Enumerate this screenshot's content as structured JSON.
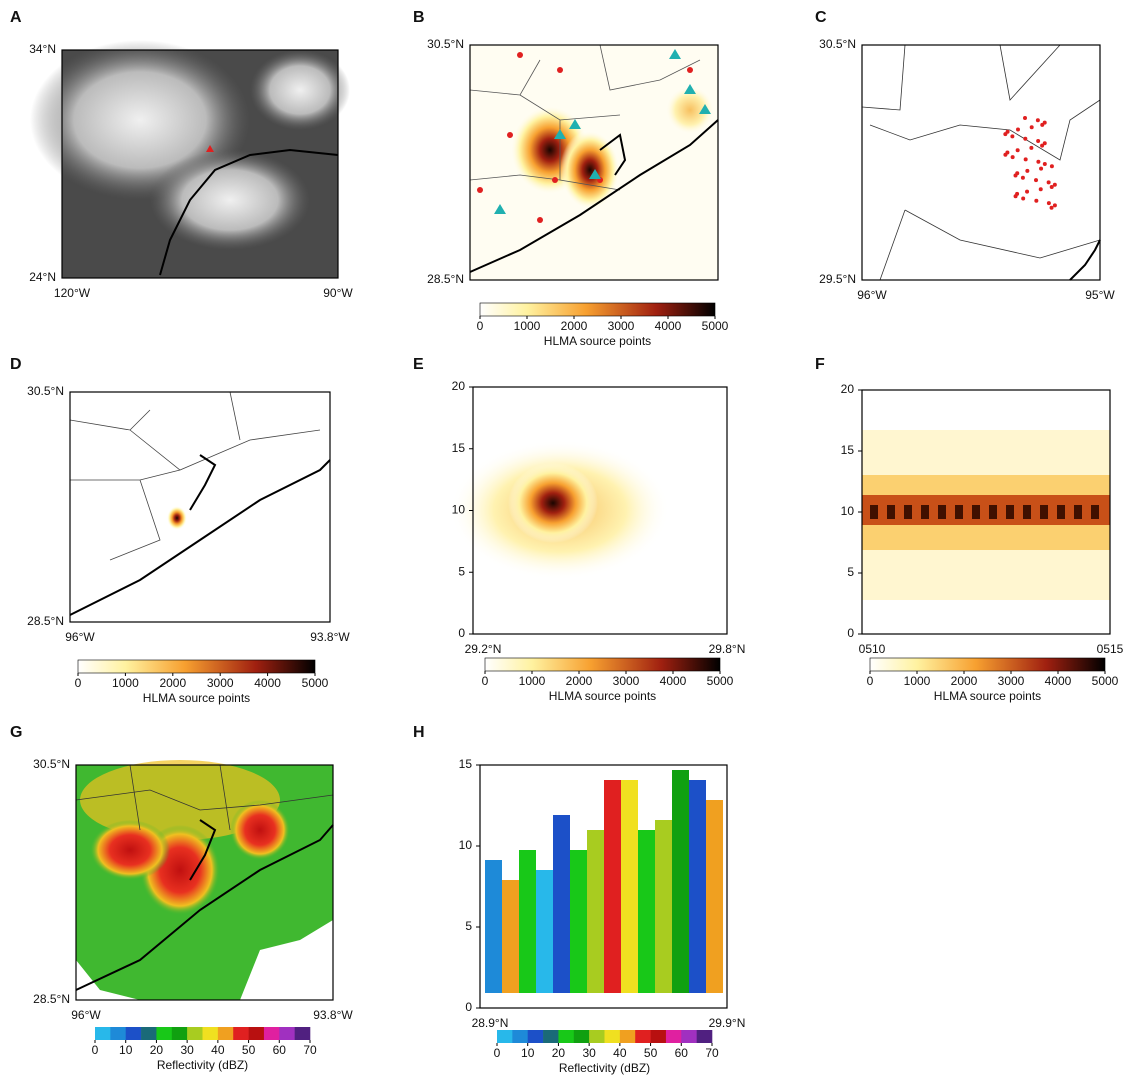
{
  "panels": [
    {
      "label": "A",
      "y_labels": [
        "34°N",
        "24°N"
      ],
      "x_labels": [
        "120°W",
        "90°W"
      ]
    },
    {
      "label": "B",
      "y_labels": [
        "30.5°N",
        "28.5°N"
      ],
      "colorbar": {
        "ticks": [
          0,
          1000,
          2000,
          3000,
          4000,
          5000
        ],
        "label": "HLMA source points"
      }
    },
    {
      "label": "C",
      "y_labels": [
        "30.5°N",
        "29.5°N"
      ],
      "x_labels": [
        "96°W",
        "95°W"
      ]
    },
    {
      "label": "D",
      "y_labels": [
        "30.5°N",
        "28.5°N"
      ],
      "x_labels": [
        "96°W",
        "93.8°W"
      ],
      "colorbar": {
        "ticks": [
          0,
          1000,
          2000,
          3000,
          4000,
          5000
        ],
        "label": "HLMA source points"
      }
    },
    {
      "label": "E",
      "yticks": [
        0,
        5,
        10,
        15,
        20
      ],
      "x_labels": [
        "29.2°N",
        "29.8°N"
      ],
      "colorbar": {
        "ticks": [
          0,
          1000,
          2000,
          3000,
          4000,
          5000
        ],
        "label": "HLMA source points"
      }
    },
    {
      "label": "F",
      "yticks": [
        0,
        5,
        10,
        15,
        20
      ],
      "x_labels": [
        "0510",
        "0515"
      ],
      "colorbar": {
        "ticks": [
          0,
          1000,
          2000,
          3000,
          4000,
          5000
        ],
        "label": "HLMA source points"
      }
    },
    {
      "label": "G",
      "y_labels": [
        "30.5°N",
        "28.5°N"
      ],
      "x_labels": [
        "96°W",
        "93.8°W"
      ],
      "colorbar": {
        "ticks": [
          0,
          10,
          20,
          30,
          40,
          50,
          60,
          70
        ],
        "label": "Reflectivity (dBZ)"
      }
    },
    {
      "label": "H",
      "yticks": [
        0,
        5,
        10,
        15
      ],
      "x_labels": [
        "28.9°N",
        "29.9°N"
      ],
      "colorbar": {
        "ticks": [
          0,
          10,
          20,
          30,
          40,
          50,
          60,
          70
        ],
        "label": "Reflectivity (dBZ)"
      }
    }
  ]
}
